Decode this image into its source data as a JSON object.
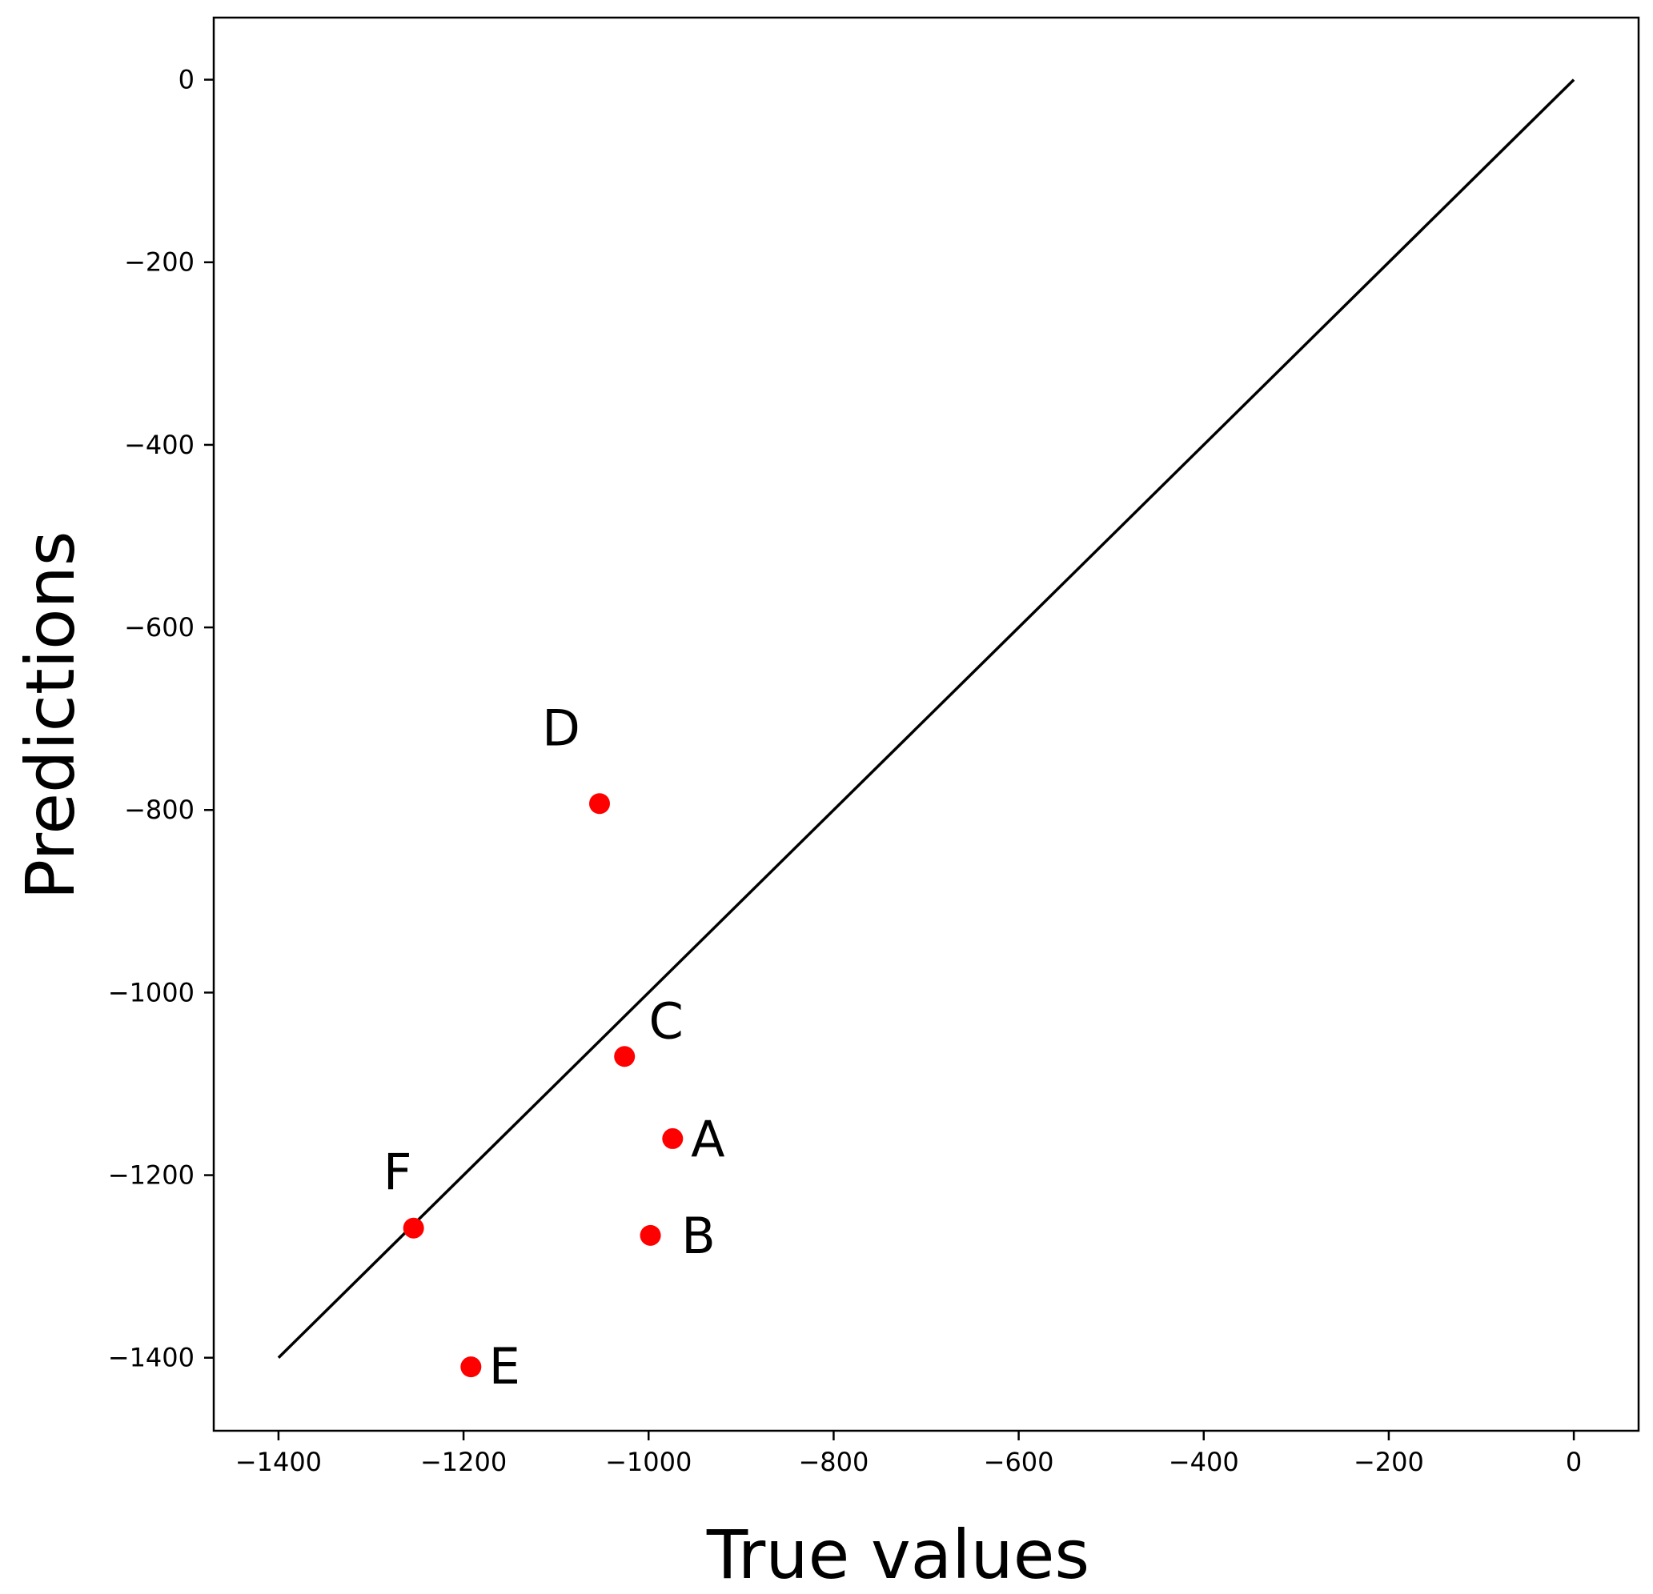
{
  "chart_data": {
    "type": "scatter",
    "title": "",
    "xlabel": "True values",
    "ylabel": "Predictions",
    "xlim": [
      -1470,
      70
    ],
    "ylim": [
      -1480,
      68
    ],
    "x_ticks": [
      -1400,
      -1200,
      -1000,
      -800,
      -600,
      -400,
      -200,
      0
    ],
    "y_ticks": [
      0,
      -200,
      -400,
      -600,
      -800,
      -1000,
      -1200,
      -1400
    ],
    "x_tick_labels": [
      "−1400",
      "−1200",
      "−1000",
      "−800",
      "−600",
      "−400",
      "−200",
      "0"
    ],
    "y_tick_labels": [
      "0",
      "−200",
      "−400",
      "−600",
      "−800",
      "−1000",
      "−1200",
      "−1400"
    ],
    "grid": false,
    "reference_line": {
      "x": [
        -1400,
        0
      ],
      "y": [
        -1400,
        0
      ],
      "color": "#000000"
    },
    "point_color": "#ff0000",
    "points": [
      {
        "label": "A",
        "x": -974,
        "y": -1160
      },
      {
        "label": "B",
        "x": -998,
        "y": -1266
      },
      {
        "label": "C",
        "x": -1026,
        "y": -1070
      },
      {
        "label": "D",
        "x": -1053,
        "y": -793
      },
      {
        "label": "E",
        "x": -1192,
        "y": -1410
      },
      {
        "label": "F",
        "x": -1254,
        "y": -1258
      }
    ]
  }
}
